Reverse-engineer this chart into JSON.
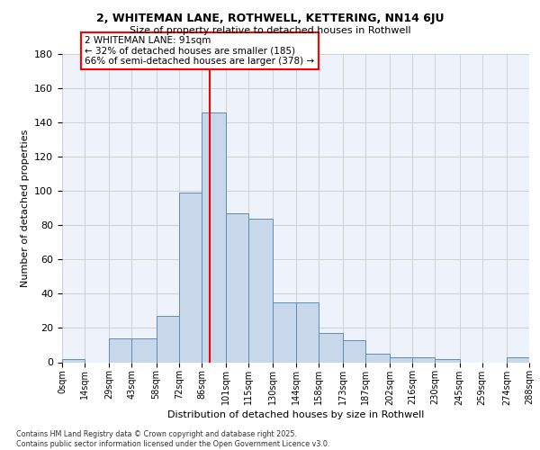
{
  "title1": "2, WHITEMAN LANE, ROTHWELL, KETTERING, NN14 6JU",
  "title2": "Size of property relative to detached houses in Rothwell",
  "xlabel": "Distribution of detached houses by size in Rothwell",
  "ylabel": "Number of detached properties",
  "bin_labels": [
    "0sqm",
    "14sqm",
    "29sqm",
    "43sqm",
    "58sqm",
    "72sqm",
    "86sqm",
    "101sqm",
    "115sqm",
    "130sqm",
    "144sqm",
    "158sqm",
    "173sqm",
    "187sqm",
    "202sqm",
    "216sqm",
    "230sqm",
    "245sqm",
    "259sqm",
    "274sqm",
    "288sqm"
  ],
  "bin_edges": [
    0,
    14,
    29,
    43,
    58,
    72,
    86,
    101,
    115,
    130,
    144,
    158,
    173,
    187,
    202,
    216,
    230,
    245,
    259,
    274,
    288
  ],
  "bar_counts": [
    2,
    0,
    14,
    14,
    27,
    99,
    146,
    87,
    84,
    35,
    35,
    17,
    13,
    5,
    3,
    3,
    2,
    0,
    0,
    3
  ],
  "bar_color": "#c8d8ea",
  "bar_edge_color": "#5b8db8",
  "vline_x": 91,
  "vline_color": "red",
  "annotation_text": "2 WHITEMAN LANE: 91sqm\n← 32% of detached houses are smaller (185)\n66% of semi-detached houses are larger (378) →",
  "ylim_max": 180,
  "yticks": [
    0,
    20,
    40,
    60,
    80,
    100,
    120,
    140,
    160,
    180
  ],
  "footer_text": "Contains HM Land Registry data © Crown copyright and database right 2025.\nContains public sector information licensed under the Open Government Licence v3.0.",
  "bg_color": "#eef2fa",
  "grid_color": "#d0d0d0"
}
